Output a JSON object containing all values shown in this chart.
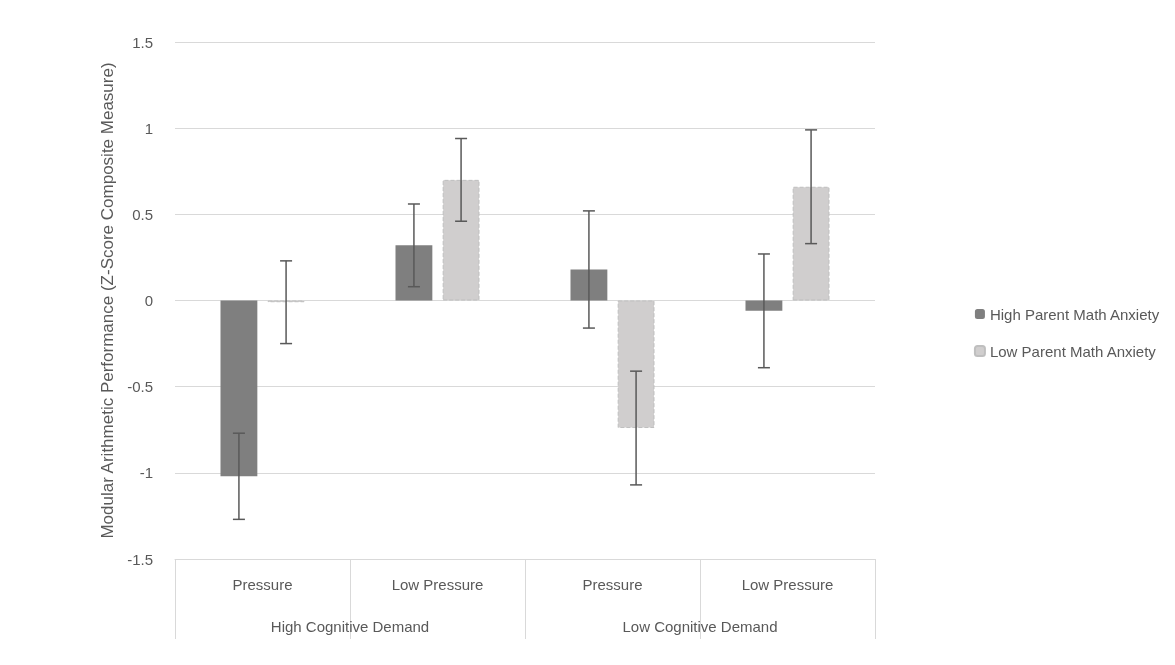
{
  "chart_data": {
    "type": "bar",
    "ylabel": "Modular Arithmetic Performance (Z-Score Composite Measure)",
    "categories": [
      "Pressure",
      "Low Pressure",
      "Pressure",
      "Low Pressure"
    ],
    "annotations": [
      "High Cognitive Demand",
      "Low Cognitive Demand"
    ],
    "series": [
      {
        "name": "High Parent Math Anxiety",
        "color": "#7f7f7f",
        "values": [
          -1.02,
          0.32,
          0.18,
          -0.06
        ],
        "errors": [
          0.25,
          0.24,
          0.34,
          0.33
        ]
      },
      {
        "name": "Low Parent Math Anxiety",
        "color": "#d0cece",
        "line_style": "dashed",
        "values": [
          -0.01,
          0.7,
          -0.74,
          0.66
        ],
        "errors": [
          0.24,
          0.24,
          0.33,
          0.33
        ]
      }
    ],
    "ylim": [
      -1.5,
      1.5
    ],
    "yticks": [
      -1.5,
      -1,
      -0.5,
      0,
      0.5,
      1,
      1.5
    ],
    "grid": "y",
    "legend": "right"
  }
}
